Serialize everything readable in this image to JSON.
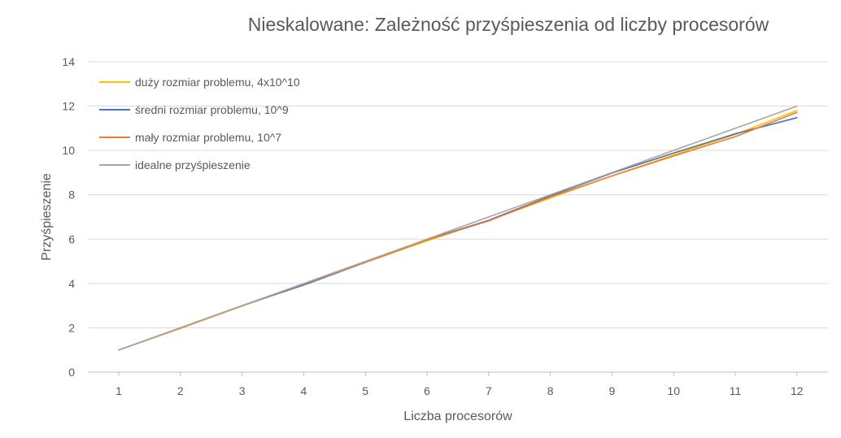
{
  "chart_data": {
    "type": "line",
    "title": "Nieskalowane: Zależność przyśpieszenia od liczby procesorów",
    "xlabel": "Liczba procesorów",
    "ylabel": "Przyśpieszenie",
    "x": [
      1,
      2,
      3,
      4,
      5,
      6,
      7,
      8,
      9,
      10,
      11,
      12
    ],
    "ylim": [
      0,
      14
    ],
    "yticks": [
      0,
      2,
      4,
      6,
      8,
      10,
      12,
      14
    ],
    "grid": true,
    "legend_position": "top-left",
    "series": [
      {
        "name": "duży rozmiar problemu, 4x10^10",
        "color": "#FFC000",
        "values": [
          1,
          1.97,
          2.98,
          3.97,
          4.95,
          5.92,
          6.85,
          7.85,
          8.85,
          9.8,
          10.72,
          11.8
        ]
      },
      {
        "name": "średni rozmiar problemu, 10^9",
        "color": "#4472C4",
        "values": [
          1,
          2,
          3,
          3.93,
          4.95,
          5.98,
          6.85,
          7.95,
          8.98,
          9.88,
          10.75,
          11.48
        ]
      },
      {
        "name": "mały rozmiar problemu, 10^7",
        "color": "#ED7D31",
        "values": [
          1,
          1.99,
          3,
          3.98,
          4.96,
          5.96,
          6.82,
          7.9,
          8.85,
          9.75,
          10.62,
          11.72
        ]
      },
      {
        "name": "idealne przyśpieszenie",
        "color": "#A5A5A5",
        "values": [
          1,
          2,
          3,
          4,
          5,
          6,
          7,
          8,
          9,
          10,
          11,
          12
        ]
      }
    ]
  }
}
